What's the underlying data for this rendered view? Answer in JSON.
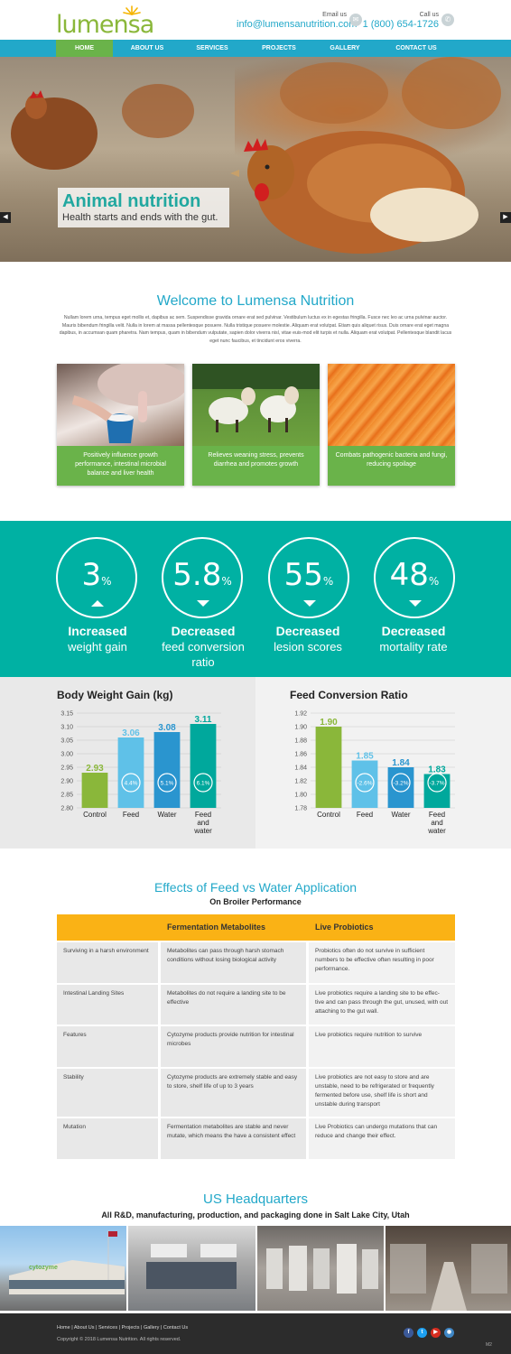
{
  "brand": {
    "logo": "lumensa",
    "accent": "#22a8c9",
    "green": "#6ab34a",
    "teal": "#00b1a3",
    "yellow": "#fab215"
  },
  "contact": {
    "email_label": "Email us",
    "email": "info@lumensanutrition.com",
    "call_label": "Call us",
    "phone": "1 (800) 654-1726"
  },
  "nav": [
    "HOME",
    "ABOUT US",
    "SERVICES",
    "PROJECTS",
    "GALLERY",
    "CONTACT US"
  ],
  "hero": {
    "title": "Animal nutrition",
    "subtitle": "Health starts and ends with the gut.",
    "prev": "◀",
    "next": "▶"
  },
  "welcome": {
    "title": "Welcome to Lumensa Nutrition",
    "body": "Nullam lorem urna, tempus eget mollis et, dapibus ac sem. Suspendisse gravida ornare erat sed pulvinar. Vestibulum luctus ex in egestas fringilla. Fusce nec leo ac urna pulvinar auctor. Mauris bibendum fringilla velit. Nulla in lorem at massa pellentesque posuere. Nulla tristique posuere molestie. Aliquam erat volutpat. Etiam quis aliquet risus. Duis ornare erat eget magna dapibus, in accumsan quam pharetra. Nam tempus, quam in bibendum vulputate, sapien dolor viverra nisl, vitae euis-mod elit turpis et nulla. Aliquam erat volutpat. Pellentesque blandit lacus eget nunc faucibus, et tincidunt eros viverra."
  },
  "cards": [
    {
      "caption": "Positively influence growth performance, intestinal microbial balance and liver health"
    },
    {
      "caption": "Relieves weaning stress, prevents diarrhea and promotes growth"
    },
    {
      "caption": "Combats pathogenic bacteria and fungi, reducing spoilage"
    }
  ],
  "stats": [
    {
      "num": "3",
      "unit": "%",
      "dir": "up",
      "line1": "Increased",
      "line2": "weight gain",
      "line3": ""
    },
    {
      "num": "5.8",
      "unit": "%",
      "dir": "down",
      "line1": "Decreased",
      "line2": "feed conversion",
      "line3": "ratio"
    },
    {
      "num": "55",
      "unit": "%",
      "dir": "down",
      "line1": "Decreased",
      "line2": "lesion scores",
      "line3": ""
    },
    {
      "num": "48",
      "unit": "%",
      "dir": "down",
      "line1": "Decreased",
      "line2": "mortality rate",
      "line3": ""
    }
  ],
  "chart_data": [
    {
      "type": "bar",
      "title": "Body Weight Gain (kg)",
      "categories": [
        "Control",
        "Feed",
        "Water",
        "Feed and water"
      ],
      "values": [
        2.93,
        3.06,
        3.08,
        3.11
      ],
      "labels": [
        "2.93",
        "3.06",
        "3.08",
        "3.11"
      ],
      "badges": [
        "",
        "4.4%",
        "5.1%",
        "6.1%"
      ],
      "colors": [
        "#8ab73a",
        "#5fc1e8",
        "#2a95cf",
        "#00a89c"
      ],
      "ylim": [
        2.8,
        3.15
      ],
      "yticks": [
        "3.15",
        "3.10",
        "3.05",
        "3.00",
        "2.95",
        "2.90",
        "2.85",
        "2.80"
      ],
      "grid": true
    },
    {
      "type": "bar",
      "title": "Feed Conversion Ratio",
      "categories": [
        "Control",
        "Feed",
        "Water",
        "Feed and water"
      ],
      "values": [
        1.9,
        1.85,
        1.84,
        1.83
      ],
      "labels": [
        "1.90",
        "1.85",
        "1.84",
        "1.83"
      ],
      "badges": [
        "",
        "-2.6%",
        "-3.2%",
        "-3.7%"
      ],
      "colors": [
        "#8ab73a",
        "#5fc1e8",
        "#2a95cf",
        "#00a89c"
      ],
      "ylim": [
        1.78,
        1.92
      ],
      "yticks": [
        "1.92",
        "1.90",
        "1.88",
        "1.86",
        "1.84",
        "1.82",
        "1.80",
        "1.78"
      ],
      "grid": true
    }
  ],
  "effects": {
    "title": "Effects of Feed vs Water Application",
    "subtitle": "On Broiler Performance",
    "headers": [
      "",
      "Fermentation Metabolites",
      "Live Probiotics"
    ],
    "rows": [
      [
        "Surviving in a harsh environment",
        "Metabolites can pass through harsh stomach conditions without losing biological activity",
        "Probiotics often do not survive in sufficient numbers to be effective often resulting in poor performance."
      ],
      [
        "Intestinal Landing Sites",
        "Metabolites do not require a landing site to be effective",
        "Live probiotics require a landing site to be effec-tive and can pass through the gut, unused, with out attaching to the gut wall."
      ],
      [
        "Features",
        "Cytozyme products provide nutrition for intestinal microbes",
        "Live probiotics require nutrition to survive"
      ],
      [
        "Stability",
        "Cytozyme products are extremely stable and easy to store, shelf life of up to 3 years",
        "Live probiotics are not easy to store and are unstable, need to be refrigerated or frequently fermented before use, shelf life is short and unstable during transport"
      ],
      [
        "Mutation",
        "Fermentation metabolites are stable and never mutate, which means the have a consistent effect",
        "Live Probiotics can undergo mutations that can reduce and change their effect."
      ]
    ]
  },
  "hq": {
    "title": "US Headquarters",
    "subtitle": "All R&D, manufacturing, production, and packaging done in Salt Lake City, Utah",
    "sign": "cytozyme"
  },
  "footer": {
    "links": [
      "Home",
      "About Us",
      "Services",
      "Projects",
      "Gallery",
      "Contact Us"
    ],
    "sep": "|",
    "copyright": "Copyright  ©  2018  Lumensa Nutrition.  All rights reserved.",
    "social": [
      "f",
      "t",
      "▶",
      "◉"
    ],
    "badge": "M2"
  }
}
